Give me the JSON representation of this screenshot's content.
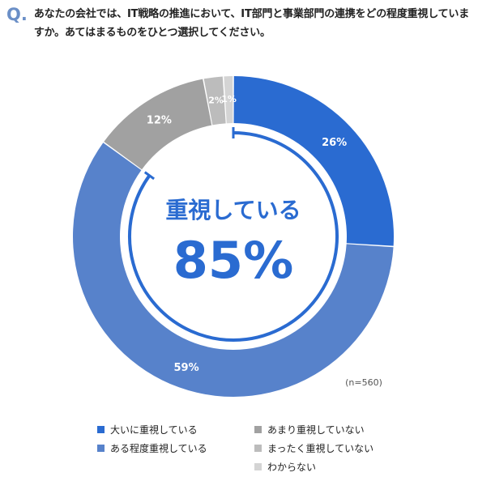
{
  "question": {
    "mark": "Q.",
    "text": "あなたの会社では、IT戦略の推進において、IT部門と事業部門の連携をどの程度重視していますか。あてはまるものをひとつ選択してください。"
  },
  "colors": {
    "accent": "#2a6bd1",
    "question_mark": "#6b8fc7"
  },
  "chart_data": {
    "type": "pie",
    "title": "",
    "center_label": "重視している",
    "center_value": "85%",
    "center_fraction": 0.85,
    "sample_note": "(n=560)",
    "slices": [
      {
        "label": "大いに重視している",
        "value": 26,
        "display": "26%",
        "color": "#2a6bd1"
      },
      {
        "label": "ある程度重視している",
        "value": 59,
        "display": "59%",
        "color": "#5782cb"
      },
      {
        "label": "あまり重視していない",
        "value": 12,
        "display": "12%",
        "color": "#a1a1a1"
      },
      {
        "label": "まったく重視していない",
        "value": 2,
        "display": "2%",
        "color": "#bcbcbc"
      },
      {
        "label": "わからない",
        "value": 1,
        "display": "1%",
        "color": "#d4d4d4"
      }
    ],
    "legend": [
      {
        "label": "大いに重視している",
        "color": "#2a6bd1"
      },
      {
        "label": "あまり重視していない",
        "color": "#a1a1a1"
      },
      {
        "label": "ある程度重視している",
        "color": "#5782cb"
      },
      {
        "label": "まったく重視していない",
        "color": "#bcbcbc"
      },
      {
        "label": "",
        "color": ""
      },
      {
        "label": "わからない",
        "color": "#d4d4d4"
      }
    ],
    "legend_position": "bottom"
  }
}
